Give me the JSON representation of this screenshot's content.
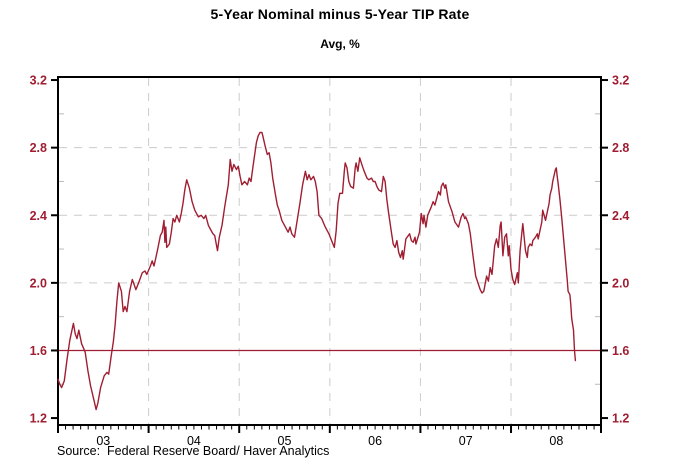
{
  "header": {
    "title": "5-Year Nominal minus 5-Year TIP Rate",
    "subtitle": "Avg, %"
  },
  "footer": {
    "source": "Source:  Federal Reserve Board/ Haver Analytics"
  },
  "colors": {
    "accent": "#A01E32",
    "grid": "#CCCCCC",
    "minor_tick": "#BBBBBB",
    "axis": "#000000",
    "x_label": "#000000",
    "background": "#FFFFFF"
  },
  "chart_data": {
    "type": "line",
    "title": "5-Year Nominal minus 5-Year TIP Rate",
    "subtitle": "Avg, %",
    "legend": "none",
    "grid": "dashed",
    "x_axis": {
      "domain": [
        2003.0,
        2008.993
      ],
      "year_tick_values": [
        2003,
        2004,
        2005,
        2006,
        2007,
        2008,
        2009
      ],
      "gridline_values": [
        2004,
        2005,
        2006,
        2007,
        2008
      ],
      "minor_tick_interval_months": 1,
      "labels": [
        {
          "label": "03",
          "t": 2003.5
        },
        {
          "label": "04",
          "t": 2004.5
        },
        {
          "label": "05",
          "t": 2005.5
        },
        {
          "label": "06",
          "t": 2006.5
        },
        {
          "label": "07",
          "t": 2007.5
        },
        {
          "label": "08",
          "t": 2008.5
        }
      ]
    },
    "y_axis": {
      "domain": [
        1.159,
        3.218
      ],
      "major_ticks": [
        3.2,
        2.8,
        2.4,
        2.0,
        1.6,
        1.2
      ],
      "minor_ticks": [
        3.0,
        2.6,
        2.2,
        1.8,
        1.4
      ],
      "gridline_values": [
        2.8,
        2.4,
        2.0
      ],
      "label_sides": [
        "left",
        "right"
      ]
    },
    "reference_line": {
      "value": 1.6
    },
    "series": [
      {
        "name": "5-Year Nominal minus 5-Year TIP Rate",
        "points": [
          [
            2003.0,
            1.43
          ],
          [
            2003.02,
            1.4
          ],
          [
            2003.04,
            1.38
          ],
          [
            2003.07,
            1.42
          ],
          [
            2003.1,
            1.55
          ],
          [
            2003.13,
            1.66
          ],
          [
            2003.17,
            1.76
          ],
          [
            2003.19,
            1.7
          ],
          [
            2003.21,
            1.67
          ],
          [
            2003.23,
            1.72
          ],
          [
            2003.26,
            1.64
          ],
          [
            2003.3,
            1.59
          ],
          [
            2003.33,
            1.48
          ],
          [
            2003.36,
            1.39
          ],
          [
            2003.4,
            1.3
          ],
          [
            2003.42,
            1.25
          ],
          [
            2003.44,
            1.29
          ],
          [
            2003.47,
            1.38
          ],
          [
            2003.51,
            1.45
          ],
          [
            2003.54,
            1.47
          ],
          [
            2003.56,
            1.46
          ],
          [
            2003.59,
            1.58
          ],
          [
            2003.61,
            1.65
          ],
          [
            2003.63,
            1.75
          ],
          [
            2003.65,
            1.89
          ],
          [
            2003.67,
            2.0
          ],
          [
            2003.7,
            1.95
          ],
          [
            2003.72,
            1.83
          ],
          [
            2003.74,
            1.86
          ],
          [
            2003.76,
            1.83
          ],
          [
            2003.79,
            1.95
          ],
          [
            2003.82,
            2.02
          ],
          [
            2003.84,
            1.99
          ],
          [
            2003.86,
            1.96
          ],
          [
            2003.89,
            2.0
          ],
          [
            2003.93,
            2.06
          ],
          [
            2003.96,
            2.07
          ],
          [
            2003.98,
            2.05
          ],
          [
            2004.02,
            2.1
          ],
          [
            2004.04,
            2.13
          ],
          [
            2004.06,
            2.1
          ],
          [
            2004.08,
            2.15
          ],
          [
            2004.1,
            2.2
          ],
          [
            2004.13,
            2.28
          ],
          [
            2004.15,
            2.3
          ],
          [
            2004.17,
            2.37
          ],
          [
            2004.18,
            2.24
          ],
          [
            2004.19,
            2.33
          ],
          [
            2004.2,
            2.21
          ],
          [
            2004.23,
            2.23
          ],
          [
            2004.25,
            2.3
          ],
          [
            2004.27,
            2.38
          ],
          [
            2004.29,
            2.36
          ],
          [
            2004.31,
            2.4
          ],
          [
            2004.34,
            2.36
          ],
          [
            2004.36,
            2.41
          ],
          [
            2004.38,
            2.47
          ],
          [
            2004.4,
            2.55
          ],
          [
            2004.42,
            2.61
          ],
          [
            2004.45,
            2.56
          ],
          [
            2004.48,
            2.48
          ],
          [
            2004.51,
            2.43
          ],
          [
            2004.55,
            2.39
          ],
          [
            2004.58,
            2.4
          ],
          [
            2004.61,
            2.38
          ],
          [
            2004.63,
            2.4
          ],
          [
            2004.66,
            2.34
          ],
          [
            2004.69,
            2.31
          ],
          [
            2004.71,
            2.29
          ],
          [
            2004.73,
            2.28
          ],
          [
            2004.76,
            2.19
          ],
          [
            2004.78,
            2.27
          ],
          [
            2004.81,
            2.34
          ],
          [
            2004.84,
            2.45
          ],
          [
            2004.88,
            2.58
          ],
          [
            2004.9,
            2.73
          ],
          [
            2004.92,
            2.66
          ],
          [
            2004.94,
            2.7
          ],
          [
            2004.97,
            2.67
          ],
          [
            2004.99,
            2.69
          ],
          [
            2005.01,
            2.63
          ],
          [
            2005.03,
            2.58
          ],
          [
            2005.06,
            2.6
          ],
          [
            2005.09,
            2.58
          ],
          [
            2005.11,
            2.62
          ],
          [
            2005.13,
            2.6
          ],
          [
            2005.15,
            2.68
          ],
          [
            2005.19,
            2.83
          ],
          [
            2005.21,
            2.87
          ],
          [
            2005.23,
            2.89
          ],
          [
            2005.25,
            2.89
          ],
          [
            2005.26,
            2.87
          ],
          [
            2005.29,
            2.8
          ],
          [
            2005.31,
            2.76
          ],
          [
            2005.33,
            2.77
          ],
          [
            2005.35,
            2.71
          ],
          [
            2005.37,
            2.62
          ],
          [
            2005.4,
            2.52
          ],
          [
            2005.42,
            2.46
          ],
          [
            2005.44,
            2.43
          ],
          [
            2005.47,
            2.37
          ],
          [
            2005.51,
            2.33
          ],
          [
            2005.54,
            2.3
          ],
          [
            2005.56,
            2.33
          ],
          [
            2005.58,
            2.29
          ],
          [
            2005.61,
            2.27
          ],
          [
            2005.64,
            2.37
          ],
          [
            2005.67,
            2.47
          ],
          [
            2005.7,
            2.58
          ],
          [
            2005.73,
            2.66
          ],
          [
            2005.75,
            2.61
          ],
          [
            2005.77,
            2.64
          ],
          [
            2005.79,
            2.61
          ],
          [
            2005.82,
            2.63
          ],
          [
            2005.84,
            2.6
          ],
          [
            2005.86,
            2.54
          ],
          [
            2005.88,
            2.4
          ],
          [
            2005.91,
            2.38
          ],
          [
            2005.95,
            2.33
          ],
          [
            2005.99,
            2.29
          ],
          [
            2006.02,
            2.25
          ],
          [
            2006.05,
            2.21
          ],
          [
            2006.07,
            2.31
          ],
          [
            2006.09,
            2.47
          ],
          [
            2006.11,
            2.53
          ],
          [
            2006.14,
            2.53
          ],
          [
            2006.16,
            2.66
          ],
          [
            2006.17,
            2.71
          ],
          [
            2006.19,
            2.68
          ],
          [
            2006.21,
            2.6
          ],
          [
            2006.23,
            2.57
          ],
          [
            2006.26,
            2.56
          ],
          [
            2006.28,
            2.68
          ],
          [
            2006.29,
            2.71
          ],
          [
            2006.31,
            2.66
          ],
          [
            2006.33,
            2.74
          ],
          [
            2006.36,
            2.69
          ],
          [
            2006.38,
            2.66
          ],
          [
            2006.41,
            2.62
          ],
          [
            2006.43,
            2.61
          ],
          [
            2006.46,
            2.62
          ],
          [
            2006.48,
            2.6
          ],
          [
            2006.5,
            2.6
          ],
          [
            2006.52,
            2.57
          ],
          [
            2006.54,
            2.55
          ],
          [
            2006.57,
            2.54
          ],
          [
            2006.59,
            2.63
          ],
          [
            2006.61,
            2.6
          ],
          [
            2006.63,
            2.49
          ],
          [
            2006.65,
            2.41
          ],
          [
            2006.68,
            2.3
          ],
          [
            2006.7,
            2.23
          ],
          [
            2006.72,
            2.21
          ],
          [
            2006.74,
            2.25
          ],
          [
            2006.76,
            2.18
          ],
          [
            2006.78,
            2.15
          ],
          [
            2006.8,
            2.19
          ],
          [
            2006.81,
            2.14
          ],
          [
            2006.84,
            2.26
          ],
          [
            2006.88,
            2.29
          ],
          [
            2006.9,
            2.25
          ],
          [
            2006.92,
            2.24
          ],
          [
            2006.94,
            2.27
          ],
          [
            2006.95,
            2.23
          ],
          [
            2006.99,
            2.3
          ],
          [
            2007.01,
            2.41
          ],
          [
            2007.03,
            2.35
          ],
          [
            2007.04,
            2.4
          ],
          [
            2007.06,
            2.33
          ],
          [
            2007.08,
            2.4
          ],
          [
            2007.12,
            2.45
          ],
          [
            2007.14,
            2.48
          ],
          [
            2007.16,
            2.46
          ],
          [
            2007.2,
            2.54
          ],
          [
            2007.22,
            2.52
          ],
          [
            2007.23,
            2.57
          ],
          [
            2007.25,
            2.59
          ],
          [
            2007.27,
            2.56
          ],
          [
            2007.28,
            2.58
          ],
          [
            2007.31,
            2.48
          ],
          [
            2007.33,
            2.45
          ],
          [
            2007.35,
            2.42
          ],
          [
            2007.38,
            2.36
          ],
          [
            2007.42,
            2.33
          ],
          [
            2007.45,
            2.39
          ],
          [
            2007.47,
            2.41
          ],
          [
            2007.49,
            2.38
          ],
          [
            2007.5,
            2.39
          ],
          [
            2007.53,
            2.35
          ],
          [
            2007.55,
            2.29
          ],
          [
            2007.58,
            2.16
          ],
          [
            2007.61,
            2.04
          ],
          [
            2007.66,
            1.96
          ],
          [
            2007.68,
            1.94
          ],
          [
            2007.7,
            1.95
          ],
          [
            2007.73,
            2.04
          ],
          [
            2007.75,
            2.01
          ],
          [
            2007.77,
            2.09
          ],
          [
            2007.79,
            2.05
          ],
          [
            2007.82,
            2.22
          ],
          [
            2007.84,
            2.26
          ],
          [
            2007.86,
            2.21
          ],
          [
            2007.88,
            2.34
          ],
          [
            2007.89,
            2.36
          ],
          [
            2007.91,
            2.16
          ],
          [
            2007.93,
            2.27
          ],
          [
            2007.95,
            2.29
          ],
          [
            2007.97,
            2.16
          ],
          [
            2007.98,
            2.22
          ],
          [
            2008.0,
            2.08
          ],
          [
            2008.02,
            2.02
          ],
          [
            2008.04,
            1.99
          ],
          [
            2008.07,
            2.06
          ],
          [
            2008.08,
            2.0
          ],
          [
            2008.1,
            2.19
          ],
          [
            2008.12,
            2.3
          ],
          [
            2008.13,
            2.35
          ],
          [
            2008.16,
            2.19
          ],
          [
            2008.18,
            2.15
          ],
          [
            2008.19,
            2.21
          ],
          [
            2008.21,
            2.23
          ],
          [
            2008.23,
            2.22
          ],
          [
            2008.24,
            2.25
          ],
          [
            2008.27,
            2.27
          ],
          [
            2008.29,
            2.29
          ],
          [
            2008.3,
            2.26
          ],
          [
            2008.32,
            2.31
          ],
          [
            2008.34,
            2.36
          ],
          [
            2008.35,
            2.43
          ],
          [
            2008.38,
            2.37
          ],
          [
            2008.4,
            2.42
          ],
          [
            2008.42,
            2.47
          ],
          [
            2008.43,
            2.52
          ],
          [
            2008.45,
            2.56
          ],
          [
            2008.46,
            2.6
          ],
          [
            2008.49,
            2.67
          ],
          [
            2008.5,
            2.68
          ],
          [
            2008.51,
            2.63
          ],
          [
            2008.52,
            2.59
          ],
          [
            2008.54,
            2.49
          ],
          [
            2008.56,
            2.38
          ],
          [
            2008.58,
            2.26
          ],
          [
            2008.6,
            2.14
          ],
          [
            2008.62,
            2.02
          ],
          [
            2008.63,
            1.95
          ],
          [
            2008.65,
            1.93
          ],
          [
            2008.66,
            1.87
          ],
          [
            2008.67,
            1.79
          ],
          [
            2008.69,
            1.72
          ],
          [
            2008.7,
            1.6
          ],
          [
            2008.71,
            1.54
          ]
        ]
      }
    ]
  }
}
